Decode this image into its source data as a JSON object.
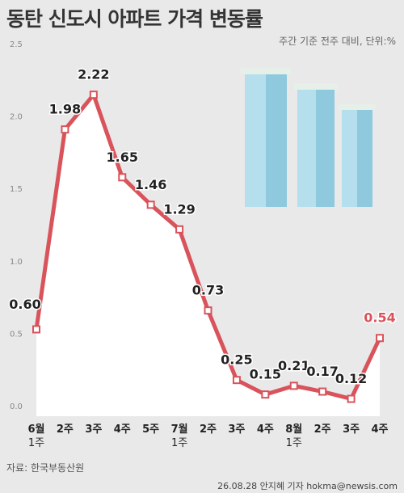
{
  "chart_data": {
    "type": "line",
    "title": "동탄 신도시 아파트 가격 변동률",
    "subtitle": "주간 기준 전주 대비, 단위:%",
    "source": "자료: 한국부동산원",
    "credit": "26.08.28 안지혜 기자 hokma@newsis.com",
    "categories": [
      "6월\n1주",
      "2주",
      "3주",
      "4주",
      "5주",
      "7월\n1주",
      "2주",
      "3주",
      "4주",
      "8월\n1주",
      "2주",
      "3주",
      "4주"
    ],
    "series": [
      {
        "name": "가격 변동률",
        "color": "#d9535b",
        "values": [
          0.6,
          1.98,
          2.22,
          1.65,
          1.46,
          1.29,
          0.73,
          0.25,
          0.15,
          0.21,
          0.17,
          0.12,
          0.54
        ],
        "value_labels": [
          "0.60",
          "1.98",
          "2.22",
          "1.65",
          "1.46",
          "1.29",
          "0.73",
          "0.25",
          "0.15",
          "0.21",
          "0.17",
          "0.12",
          "0.54"
        ]
      }
    ],
    "ylim": [
      0,
      2.5
    ],
    "yticks": [
      {
        "value": 0,
        "label": "0.0"
      },
      0.5,
      {
        "value": 1,
        "label": "1.0"
      },
      1.5,
      {
        "value": 2,
        "label": "2.0"
      },
      2.5
    ],
    "grid": false
  }
}
